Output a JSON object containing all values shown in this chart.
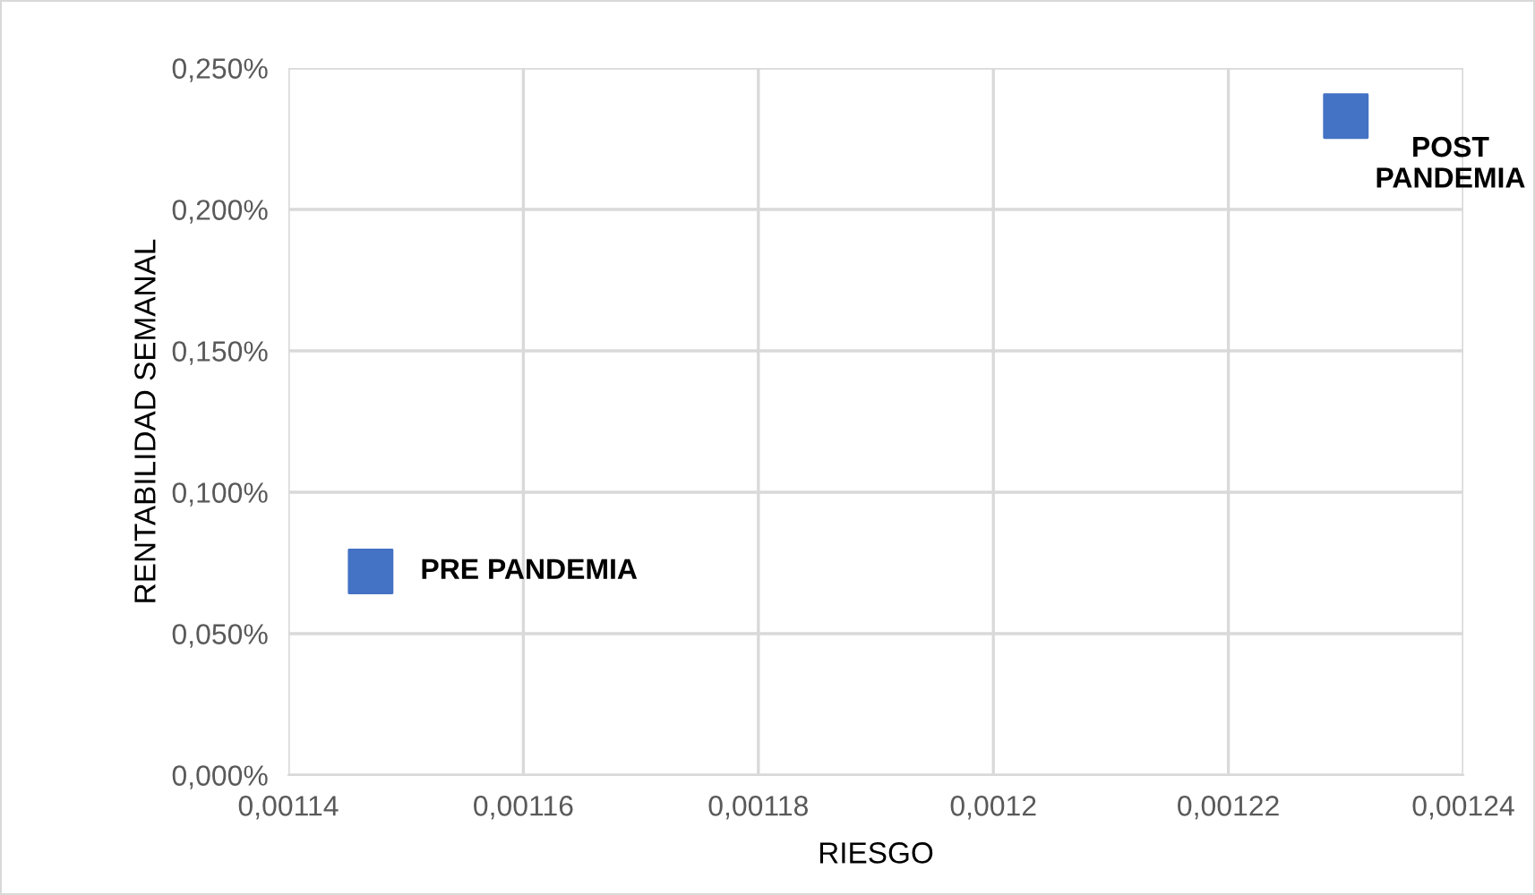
{
  "chart_data": {
    "type": "scatter",
    "xlabel": "RIESGO",
    "ylabel": "RENTABILIDAD SEMANAL",
    "x": [
      0.001147,
      0.00123
    ],
    "series": [
      {
        "color": "#4472c4",
        "values": [
          0.072,
          0.233
        ]
      }
    ],
    "marker": "square",
    "annotations": [
      {
        "text": "PRE PANDEMIA",
        "x": 0.001147,
        "y": 0.072
      },
      {
        "text": "POST\nPANDEMIA",
        "x": 0.00123,
        "y": 0.233
      }
    ],
    "xlim": [
      0.00114,
      0.00124
    ],
    "xticks": [
      {
        "value": 0.00114,
        "label": "0,00114"
      },
      {
        "value": 0.00116,
        "label": "0,00116"
      },
      {
        "value": 0.00118,
        "label": "0,00118"
      },
      {
        "value": 0.0012,
        "label": "0,0012"
      },
      {
        "value": 0.00122,
        "label": "0,00122"
      },
      {
        "value": 0.00124,
        "label": "0,00124"
      }
    ],
    "ylim": [
      0,
      0.25
    ],
    "yticks": [
      {
        "value": 0,
        "label": "0,000%"
      },
      {
        "value": 0.05,
        "label": "0,050%"
      },
      {
        "value": 0.1,
        "label": "0,100%"
      },
      {
        "value": 0.15,
        "label": "0,150%"
      },
      {
        "value": 0.2,
        "label": "0,200%"
      },
      {
        "value": 0.25,
        "label": "0,250%"
      }
    ],
    "grid": true,
    "legend": false
  }
}
